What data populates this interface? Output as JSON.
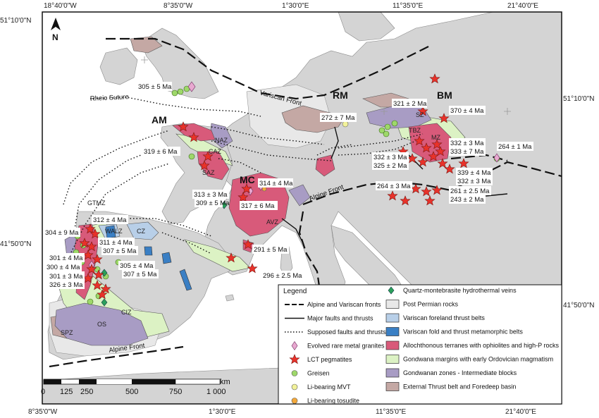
{
  "coordinates": {
    "top": [
      "18°40'0\"W",
      "8°35'0\"W",
      "1°30'0\"E",
      "11°35'0\"E",
      "21°40'0\"E"
    ],
    "bottom": [
      "8°35'0\"W",
      "1°30'0\"E",
      "11°35'0\"E",
      "21°40'0\"E"
    ],
    "left": [
      "51°10'0\"N",
      "41°50'0\"N"
    ],
    "right": [
      "51°10'0\"N",
      "41°50'0\"N"
    ]
  },
  "north_arrow": {
    "label": "N"
  },
  "regions": {
    "am": "AM",
    "mc": "MC",
    "rm": "RM",
    "bm": "BM"
  },
  "zones": {
    "naz": "NAZ",
    "caz": "CAZ",
    "saz": "SAZ",
    "sz": "SZ",
    "tbz": "TBZ",
    "mz": "MZ",
    "avz": "AVZ",
    "gtmz": "GTMZ",
    "walz": "WALZ",
    "cz": "CZ",
    "ciz": "CIZ",
    "os": "OS",
    "spz": "SPZ"
  },
  "structures": {
    "rheic_suture": "Rheic Suture",
    "variscan_front": "Variscan Front",
    "alpine_front_east": "Alpine Front",
    "alpine_front_south": "Alpine Front"
  },
  "ages": {
    "a305": "305 ± 5 Ma",
    "a272": "272 ± 7 Ma",
    "a321": "321 ± 2 Ma",
    "a370": "370 ± 4 Ma",
    "a319": "319 ± 6 Ma",
    "a332a": "332 ± 3 Ma",
    "a333": "333 ± 7 Ma",
    "a264a": "264 ± 1 Ma",
    "a332b": "332 ± 3 Ma",
    "a325": "325 ± 2 Ma",
    "a339": "339 ± 4 Ma",
    "a332c": "332 ± 3 Ma",
    "a314": "314 ± 4 Ma",
    "a264b": "264 ± 3 Ma",
    "a261": "261 ± 2.5 Ma",
    "a313": "313 ± 3 Ma",
    "a309": "309 ± 5 Ma",
    "a317": "317 ± 6 Ma",
    "a243": "243 ± 2 Ma",
    "a312": "312 ± 4 Ma",
    "a304": "304 ± 9 Ma",
    "a311": "311 ± 4 Ma",
    "a307a": "307 ± 5 Ma",
    "a301a": "301 ± 4 Ma",
    "a300": "300 ± 4 Ma",
    "a305b": "305 ± 4 Ma",
    "a307b": "307 ± 5 Ma",
    "a301b": "301 ± 3 Ma",
    "a326": "326 ± 3 Ma",
    "a291": "291 ± 5 Ma",
    "a296": "296 ± 2.5 Ma"
  },
  "legend": {
    "title": "Legend",
    "left_items": [
      {
        "label": "Alpine and Variscan fronts",
        "symbol": "dash-line"
      },
      {
        "label": "Major faults and thrusts",
        "symbol": "solid-line"
      },
      {
        "label": "Supposed faults and thrusts",
        "symbol": "dotted-line"
      },
      {
        "label": "Evolved rare metal granites",
        "symbol": "diamond-pink",
        "color": "#e8a8d0"
      },
      {
        "label": "LCT pegmatites",
        "symbol": "star-red",
        "color": "#e8322a"
      },
      {
        "label": "Greisen",
        "symbol": "circle-green",
        "color": "#9ed86a"
      },
      {
        "label": "Li-bearing MVT",
        "symbol": "circle-yellow",
        "color": "#f2f29a"
      },
      {
        "label": "Li-bearing tosudite",
        "symbol": "circle-orange",
        "color": "#f3a83a"
      }
    ],
    "right_items": [
      {
        "label": "Quartz-montebrasite hydrothermal veins",
        "symbol": "diamond-green",
        "color": "#2aa05a"
      },
      {
        "label": "Post Permian rocks",
        "symbol": "box",
        "color": "#e8e8e8"
      },
      {
        "label": "Variscan foreland thrust belts",
        "symbol": "box",
        "color": "#b8cfe8"
      },
      {
        "label": "Variscan fold and thrust metamorphic belts",
        "symbol": "box",
        "color": "#3a7fc4"
      },
      {
        "label": "Allochthonous terranes with ophiolites and high-P rocks",
        "symbol": "box",
        "color": "#d85a7a"
      },
      {
        "label": "Gondwana margins with early Ordovician magmatism",
        "symbol": "box",
        "color": "#dcf2c4"
      },
      {
        "label": "Gondwanan zones - Intermediate blocks",
        "symbol": "box",
        "color": "#a89cc4"
      },
      {
        "label": "External Thrust belt and Foredeep basin",
        "symbol": "box",
        "color": "#c4a8a4"
      }
    ]
  },
  "scale_bar": {
    "unit": "km",
    "ticks": [
      "0",
      "125",
      "250",
      "500",
      "750",
      "1 000"
    ]
  },
  "colors": {
    "sea": "#ffffff",
    "land": "#d4d4d4",
    "coast": "#8a8a8a",
    "post_permian": "#e8e8e8",
    "allochthonous": "#d85a7a",
    "gondwana_margin": "#dcf2c4",
    "intermediate": "#a89cc4",
    "foredeep": "#c4a8a4",
    "foreland": "#b8cfe8",
    "fold_belt": "#3a7fc4",
    "star": "#e8322a",
    "greisen": "#9ed86a"
  }
}
